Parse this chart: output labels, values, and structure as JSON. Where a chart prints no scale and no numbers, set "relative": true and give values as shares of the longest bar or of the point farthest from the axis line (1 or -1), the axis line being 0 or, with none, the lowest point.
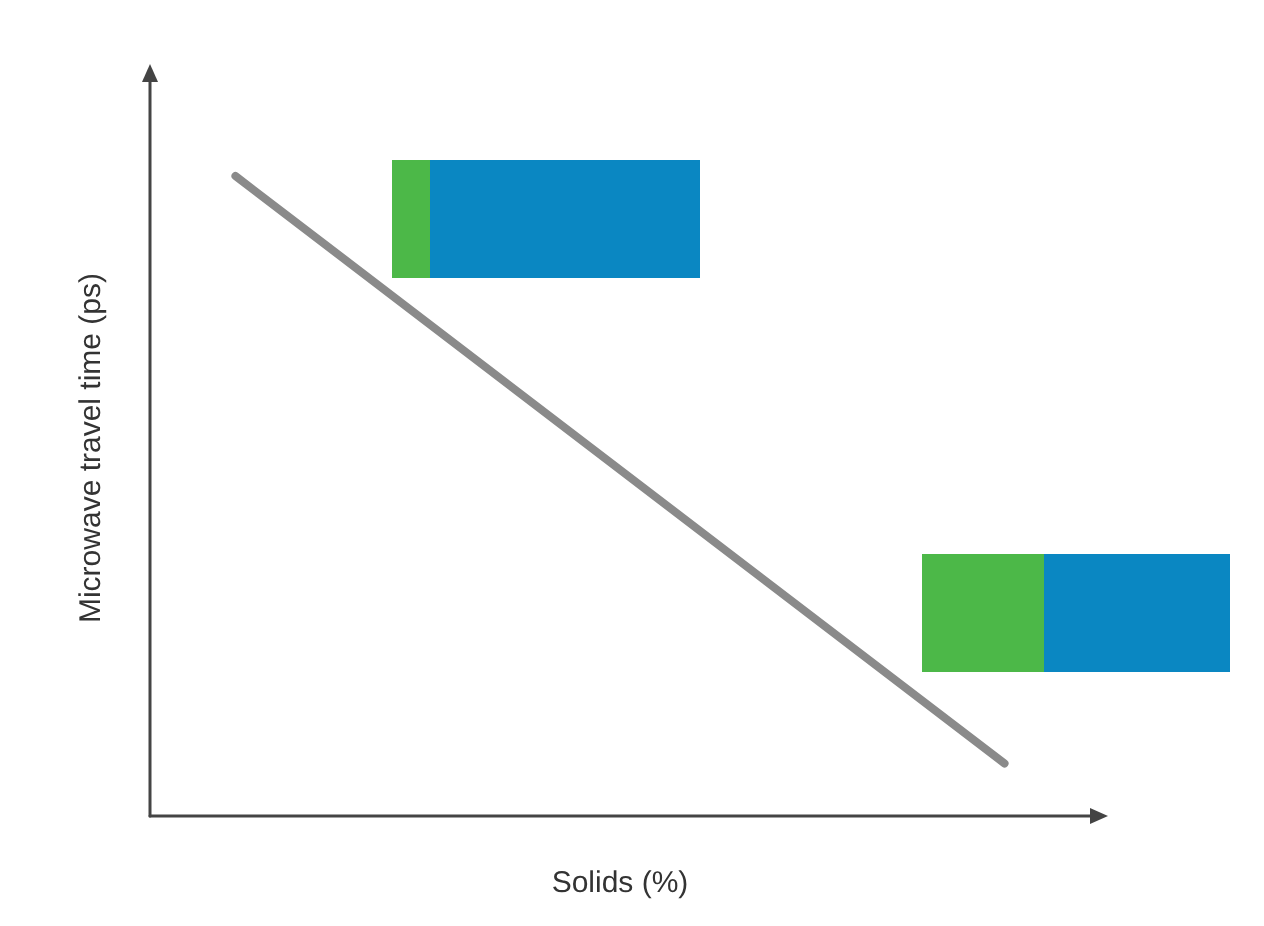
{
  "chart_data": {
    "type": "line",
    "relative": true,
    "xlabel": "Solids (%)",
    "ylabel": "Microwave travel time (ps)",
    "categories": [
      null,
      null,
      null,
      null,
      null,
      null,
      null,
      null,
      null,
      null,
      null,
      null
    ],
    "series": [
      {
        "color": "#8a8a8a",
        "values": [
          null,
          1,
          null,
          null,
          null,
          null,
          null,
          null,
          null,
          null,
          0.082,
          null
        ]
      }
    ],
    "marker": "none",
    "line_style": "solid"
  }
}
